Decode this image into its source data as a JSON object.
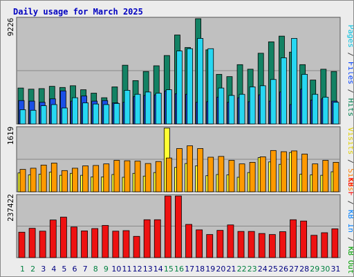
{
  "title": "Daily usage for March 2025",
  "left_labels": {
    "top": "9226",
    "middle": "1619",
    "bottom": "237422"
  },
  "right_labels": {
    "top": [
      {
        "text": "Pages",
        "color": "#00c0e0"
      },
      {
        "text": " / ",
        "color": "#404040"
      },
      {
        "text": "Files",
        "color": "#0040ff"
      },
      {
        "text": " / ",
        "color": "#404040"
      },
      {
        "text": "Hits",
        "color": "#008050"
      }
    ],
    "middle": [
      {
        "text": "Visits",
        "color": "#e0d000"
      },
      {
        "text": " / ",
        "color": "#404040"
      },
      {
        "text": "Sites",
        "color": "#ff8000"
      }
    ],
    "bottom": [
      {
        "text": "KB F",
        "color": "#ff0000"
      },
      {
        "text": " / ",
        "color": "#404040"
      },
      {
        "text": "KB In",
        "color": "#0080ff"
      },
      {
        "text": " / ",
        "color": "#404040"
      },
      {
        "text": "KB Out",
        "color": "#00a000"
      }
    ]
  },
  "colors": {
    "hits": "#138264",
    "files": "#1a4fe6",
    "pages": "#27d7f2",
    "visits": "#ffff33",
    "sites": "#ff9a00",
    "kbf": "#ee1111",
    "panel_bg": "#c0c0c0",
    "title": "#0000c0",
    "weekend_label": "#008040",
    "day_label": "#000080"
  },
  "chart_data": [
    {
      "type": "bar",
      "title": "Daily usage for March 2025",
      "categories": [
        "1",
        "2",
        "3",
        "4",
        "5",
        "6",
        "7",
        "8",
        "9",
        "10",
        "11",
        "12",
        "13",
        "14",
        "15",
        "16",
        "17",
        "18",
        "19",
        "20",
        "21",
        "22",
        "23",
        "24",
        "25",
        "26",
        "27",
        "28",
        "29",
        "30",
        "31"
      ],
      "weekend_days": [
        "1",
        "2",
        "8",
        "9",
        "15",
        "16",
        "22",
        "23",
        "29",
        "30"
      ],
      "ylim": [
        0,
        9226
      ],
      "series": [
        {
          "name": "Hits",
          "values": [
            3150,
            3050,
            3100,
            3300,
            3200,
            3350,
            3000,
            2700,
            2300,
            3250,
            5150,
            3800,
            4600,
            5100,
            6000,
            7800,
            6700,
            9226,
            6500,
            4350,
            4150,
            5200,
            4800,
            6200,
            7200,
            7700,
            6300,
            5200,
            3850,
            4800,
            4600
          ]
        },
        {
          "name": "Files",
          "values": [
            2050,
            2000,
            1900,
            2200,
            2900,
            2000,
            2450,
            2000,
            2050,
            1850,
            1900,
            2400,
            2500,
            2550,
            2900,
            2650,
            2600,
            1900,
            1950,
            2350,
            1900,
            2300,
            1950,
            2550,
            2000,
            2800,
            1700,
            3050,
            2100,
            2200,
            2000
          ]
        },
        {
          "name": "Pages",
          "values": [
            1250,
            1200,
            1600,
            1700,
            1400,
            2300,
            1850,
            1750,
            1700,
            1800,
            2950,
            2600,
            2800,
            2700,
            3000,
            6400,
            6600,
            7500,
            6600,
            3150,
            2500,
            2600,
            3250,
            3350,
            3900,
            5800,
            7500,
            4350,
            2600,
            2350,
            1900
          ]
        }
      ]
    },
    {
      "type": "bar",
      "categories": [
        "1",
        "2",
        "3",
        "4",
        "5",
        "6",
        "7",
        "8",
        "9",
        "10",
        "11",
        "12",
        "13",
        "14",
        "15",
        "16",
        "17",
        "18",
        "19",
        "20",
        "21",
        "22",
        "23",
        "24",
        "25",
        "26",
        "27",
        "28",
        "29",
        "30",
        "31"
      ],
      "ylim": [
        0,
        1619
      ],
      "series": [
        {
          "name": "Visits",
          "values": [
            480,
            430,
            450,
            500,
            420,
            470,
            420,
            380,
            380,
            440,
            370,
            470,
            400,
            490,
            1619,
            620,
            720,
            660,
            410,
            440,
            430,
            370,
            490,
            870,
            760,
            700,
            1000,
            450,
            430,
            420,
            510
          ]
        },
        {
          "name": "Sites",
          "values": [
            570,
            600,
            680,
            730,
            540,
            600,
            660,
            670,
            710,
            800,
            790,
            780,
            720,
            770,
            860,
            1100,
            1170,
            1100,
            880,
            900,
            800,
            710,
            750,
            890,
            1050,
            1020,
            1040,
            960,
            710,
            800,
            750
          ]
        }
      ]
    },
    {
      "type": "bar",
      "categories": [
        "1",
        "2",
        "3",
        "4",
        "5",
        "6",
        "7",
        "8",
        "9",
        "10",
        "11",
        "12",
        "13",
        "14",
        "15",
        "16",
        "17",
        "18",
        "19",
        "20",
        "21",
        "22",
        "23",
        "24",
        "25",
        "26",
        "27",
        "28",
        "29",
        "30",
        "31"
      ],
      "ylim": [
        0,
        237422
      ],
      "series": [
        {
          "name": "KB F",
          "values": [
            98000,
            113000,
            102000,
            145000,
            156000,
            118000,
            103000,
            112000,
            124000,
            102000,
            104000,
            82000,
            146000,
            146000,
            237422,
            237422,
            128000,
            107000,
            89000,
            105000,
            126000,
            101000,
            101000,
            93000,
            89000,
            100000,
            146000,
            141000,
            86000,
            96000,
            111000
          ]
        }
      ]
    }
  ]
}
